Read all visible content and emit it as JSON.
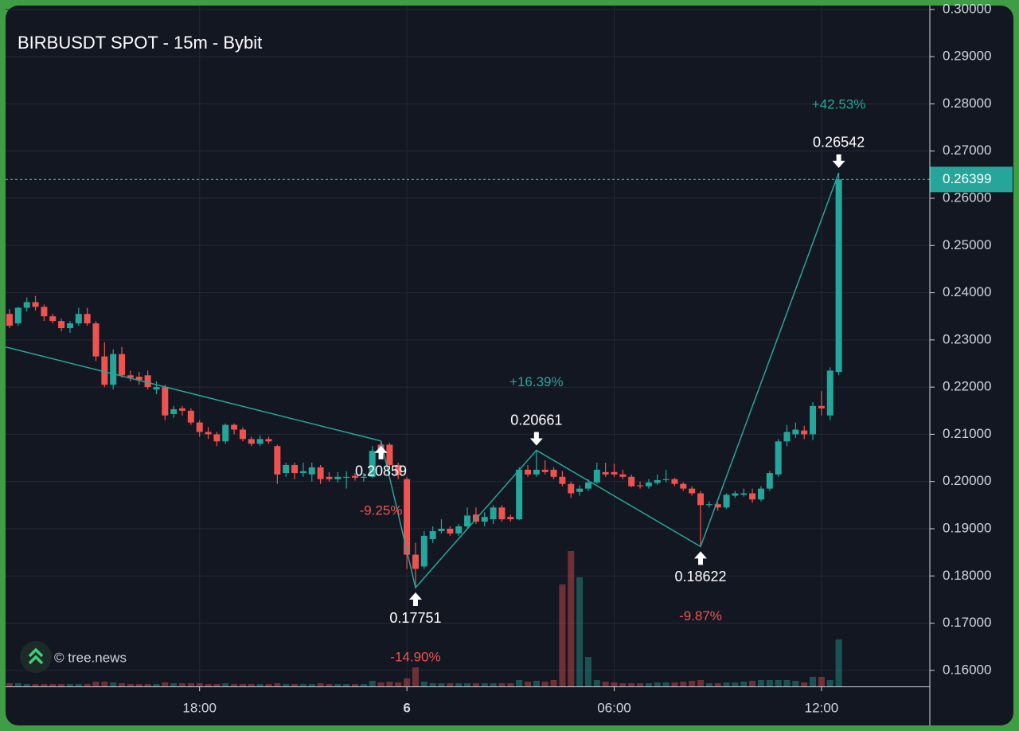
{
  "chart_data": {
    "type": "candlestick",
    "title": "BIRBUSDT SPOT - 15m - Bybit",
    "watermark": "© tree.news",
    "categories": [
      null,
      null,
      null,
      null,
      null,
      null,
      null,
      null,
      null,
      null,
      null,
      null,
      null,
      null,
      null,
      null,
      null,
      null,
      null,
      null,
      null,
      null,
      "18:00",
      null,
      null,
      null,
      null,
      null,
      null,
      null,
      null,
      null,
      null,
      null,
      null,
      null,
      null,
      null,
      null,
      null,
      null,
      null,
      null,
      null,
      null,
      null,
      "6",
      null,
      null,
      null,
      null,
      null,
      null,
      null,
      null,
      null,
      null,
      null,
      null,
      null,
      null,
      null,
      null,
      null,
      null,
      null,
      null,
      null,
      null,
      null,
      "06:00",
      null,
      null,
      null,
      null,
      null,
      null,
      null,
      null,
      null,
      null,
      null,
      null,
      null,
      null,
      null,
      null,
      null,
      null,
      null,
      null,
      null,
      null,
      null,
      "12:00",
      null,
      null
    ],
    "open": [
      0.2355,
      0.2335,
      0.2368,
      0.238,
      0.237,
      0.235,
      0.234,
      0.2325,
      0.2335,
      0.2355,
      0.2335,
      0.2265,
      0.2205,
      0.227,
      0.2225,
      0.2222,
      0.2225,
      0.2195,
      0.22,
      0.2143,
      0.2155,
      0.215,
      0.2125,
      0.2105,
      0.21,
      0.2085,
      0.212,
      0.211,
      0.209,
      0.208,
      0.209,
      0.2075,
      0.2018,
      0.2035,
      0.2018,
      0.2015,
      0.203,
      0.201,
      0.2005,
      0.2008,
      0.2012,
      0.2008,
      0.201,
      0.2078,
      0.2078,
      0.2035,
      0.2005,
      0.1845,
      0.182,
      0.1878,
      0.1895,
      0.19,
      0.189,
      0.1905,
      0.193,
      0.1915,
      0.192,
      0.1945,
      0.1925,
      0.192,
      0.2025,
      0.2015,
      0.2025,
      0.2025,
      0.201,
      0.1995,
      0.1978,
      0.1985,
      0.1998,
      0.202,
      0.202,
      0.2015,
      0.201,
      0.1992,
      0.199,
      0.1997,
      0.2003,
      0.2005,
      0.1995,
      0.1985,
      0.1975,
      0.195,
      0.1952,
      0.1945,
      0.197,
      0.1972,
      0.1975,
      0.1962,
      0.1985,
      0.2015,
      0.2085,
      0.21,
      0.2108,
      0.21,
      0.216,
      0.214,
      0.2232
    ],
    "high": [
      0.2365,
      0.237,
      0.239,
      0.2393,
      0.2375,
      0.2355,
      0.2345,
      0.234,
      0.2368,
      0.2368,
      0.234,
      0.2295,
      0.228,
      0.2285,
      0.2235,
      0.2232,
      0.2235,
      0.2212,
      0.2205,
      0.216,
      0.216,
      0.2155,
      0.213,
      0.2115,
      0.2105,
      0.2123,
      0.2123,
      0.2115,
      0.2095,
      0.2098,
      0.2095,
      0.2078,
      0.204,
      0.204,
      0.204,
      0.204,
      0.2035,
      0.202,
      0.202,
      0.2022,
      0.2018,
      0.2018,
      0.2075,
      0.20859,
      0.2082,
      0.204,
      0.201,
      0.187,
      0.1895,
      0.1905,
      0.192,
      0.1905,
      0.191,
      0.1945,
      0.1945,
      0.1935,
      0.195,
      0.195,
      0.193,
      0.203,
      0.2035,
      0.20661,
      0.2045,
      0.203,
      0.2022,
      0.2,
      0.1992,
      0.2005,
      0.204,
      0.204,
      0.2038,
      0.2025,
      0.2015,
      0.2,
      0.2005,
      0.2015,
      0.2025,
      0.2008,
      0.1998,
      0.199,
      0.198,
      0.1958,
      0.1955,
      0.1975,
      0.198,
      0.1985,
      0.1985,
      0.199,
      0.2022,
      0.209,
      0.212,
      0.2125,
      0.2118,
      0.2168,
      0.2192,
      0.2242,
      0.26542
    ],
    "low": [
      0.2325,
      0.233,
      0.236,
      0.2362,
      0.234,
      0.2335,
      0.2318,
      0.2315,
      0.233,
      0.233,
      0.2255,
      0.22,
      0.2195,
      0.222,
      0.2212,
      0.2205,
      0.2195,
      0.2185,
      0.213,
      0.2135,
      0.214,
      0.212,
      0.2095,
      0.209,
      0.2075,
      0.208,
      0.21,
      0.2085,
      0.2075,
      0.2075,
      0.208,
      0.1995,
      0.201,
      0.2005,
      0.201,
      0.2,
      0.1995,
      0.2,
      0.1998,
      0.1985,
      0.2002,
      0.2,
      0.2008,
      0.2055,
      0.203,
      0.2005,
      0.1815,
      0.17751,
      0.1815,
      0.187,
      0.189,
      0.1885,
      0.1885,
      0.19,
      0.191,
      0.1905,
      0.191,
      0.1915,
      0.1915,
      0.1918,
      0.201,
      0.201,
      0.2015,
      0.2005,
      0.199,
      0.1965,
      0.197,
      0.198,
      0.1995,
      0.201,
      0.201,
      0.2005,
      0.1988,
      0.1985,
      0.1985,
      0.1993,
      0.1998,
      0.199,
      0.198,
      0.197,
      0.18622,
      0.1945,
      0.1938,
      0.1942,
      0.1965,
      0.1968,
      0.1955,
      0.1958,
      0.198,
      0.201,
      0.2075,
      0.2092,
      0.209,
      0.2088,
      0.214,
      0.213,
      0.2225
    ],
    "close": [
      0.233,
      0.2368,
      0.238,
      0.237,
      0.235,
      0.234,
      0.2325,
      0.2335,
      0.2355,
      0.2335,
      0.2265,
      0.2205,
      0.227,
      0.2225,
      0.222,
      0.2215,
      0.22,
      0.22,
      0.214,
      0.2153,
      0.215,
      0.2125,
      0.2105,
      0.21,
      0.2085,
      0.212,
      0.211,
      0.209,
      0.208,
      0.209,
      0.2085,
      0.2015,
      0.2035,
      0.2018,
      0.2022,
      0.203,
      0.2005,
      0.2005,
      0.201,
      0.201,
      0.2008,
      0.201,
      0.2065,
      0.206,
      0.2035,
      0.2015,
      0.1845,
      0.1815,
      0.1885,
      0.1895,
      0.19,
      0.189,
      0.1905,
      0.1928,
      0.1915,
      0.1925,
      0.1945,
      0.192,
      0.192,
      0.2025,
      0.2015,
      0.2025,
      0.202,
      0.201,
      0.1995,
      0.1975,
      0.1985,
      0.1998,
      0.2025,
      0.2015,
      0.2015,
      0.201,
      0.199,
      0.199,
      0.1998,
      0.2003,
      0.2005,
      0.1995,
      0.1985,
      0.1975,
      0.195,
      0.1952,
      0.1945,
      0.1972,
      0.1975,
      0.1975,
      0.1962,
      0.1985,
      0.2018,
      0.2085,
      0.2105,
      0.211,
      0.21,
      0.216,
      0.2155,
      0.2235,
      0.26399
    ],
    "volume": [
      4,
      4,
      3,
      3,
      3,
      3,
      3,
      3,
      3,
      3,
      6,
      6,
      5,
      4,
      3,
      3,
      3,
      3,
      5,
      4,
      4,
      4,
      4,
      3,
      3,
      4,
      3,
      3,
      3,
      3,
      3,
      4,
      3,
      3,
      3,
      3,
      4,
      3,
      3,
      3,
      3,
      3,
      7,
      5,
      6,
      5,
      10,
      24,
      6,
      4,
      4,
      4,
      4,
      4,
      4,
      4,
      4,
      4,
      4,
      8,
      6,
      7,
      6,
      8,
      128,
      170,
      137,
      37,
      8,
      6,
      5,
      4,
      4,
      4,
      4,
      5,
      5,
      5,
      6,
      7,
      8,
      4,
      4,
      5,
      5,
      6,
      7,
      8,
      8,
      8,
      8,
      7,
      5,
      12,
      12,
      8,
      59
    ],
    "up_color": "#26a69a",
    "down_color": "#ef5350",
    "ylim": [
      0.1566,
      0.302
    ],
    "yticks": [
      {
        "value": 0.16,
        "label": "0.16000"
      },
      {
        "value": 0.17,
        "label": "0.17000"
      },
      {
        "value": 0.18,
        "label": "0.18000"
      },
      {
        "value": 0.19,
        "label": "0.19000"
      },
      {
        "value": 0.2,
        "label": "0.20000"
      },
      {
        "value": 0.21,
        "label": "0.21000"
      },
      {
        "value": 0.22,
        "label": "0.22000"
      },
      {
        "value": 0.23,
        "label": "0.23000"
      },
      {
        "value": 0.24,
        "label": "0.24000"
      },
      {
        "value": 0.25,
        "label": "0.25000"
      },
      {
        "value": 0.26,
        "label": "0.26000"
      },
      {
        "value": 0.27,
        "label": "0.27000"
      },
      {
        "value": 0.28,
        "label": "0.28000"
      },
      {
        "value": 0.29,
        "label": "0.29000"
      },
      {
        "value": 0.3,
        "label": "0.30000"
      }
    ],
    "grid": true,
    "last_price": 0.26399,
    "zigzag_start": 0.2285,
    "pivots": [
      {
        "index": 43,
        "price": 0.20859,
        "change": {
          "value": -9.25,
          "label": "-9.25%"
        }
      },
      {
        "index": 47,
        "price": 0.17751,
        "change": {
          "value": -14.9,
          "label": "-14.90%"
        }
      },
      {
        "index": 61,
        "price": 0.20661,
        "change": {
          "value": 16.39,
          "label": "+16.39%"
        }
      },
      {
        "index": 80,
        "price": 0.18622,
        "change": {
          "value": -9.87,
          "label": "-9.87%"
        }
      },
      {
        "index": 96,
        "price": 0.26542,
        "change": {
          "value": 42.53,
          "label": "+42.53%"
        }
      }
    ]
  }
}
